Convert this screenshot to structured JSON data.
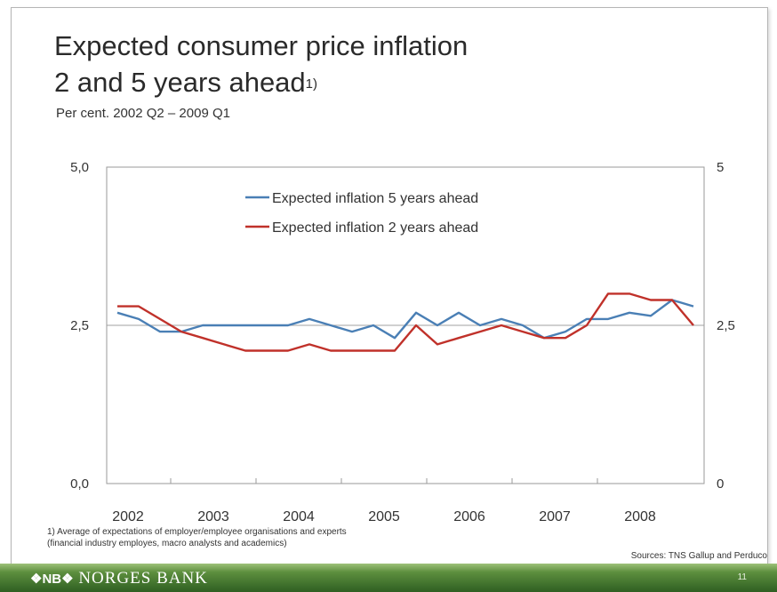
{
  "slide": {
    "title_line1": "Expected consumer price inflation",
    "title_line2": "2 and 5 years ahead",
    "title_sup": "1)",
    "subtitle": "Per cent. 2002 Q2 – 2009 Q1",
    "footnote_line1": "1) Average of expectations of employer/employee organisations and experts",
    "footnote_line2": "(financial industry employes, macro analysts and academics)",
    "sources": "Sources: TNS Gallup and Perduco",
    "logo_mark": "❖NB❖",
    "logo_text": "NORGES BANK",
    "page_number": "11"
  },
  "colors": {
    "series_5y": "#4a7fb5",
    "series_2y": "#c0312a",
    "reference_line": "#b4b4b4"
  },
  "chart_data": {
    "type": "line",
    "title": "Expected consumer price inflation 2 and 5 years ahead",
    "subtitle": "Per cent. 2002 Q2 – 2009 Q1",
    "x_quarters": [
      "2002 Q2",
      "2002 Q3",
      "2002 Q4",
      "2003 Q1",
      "2003 Q2",
      "2003 Q3",
      "2003 Q4",
      "2004 Q1",
      "2004 Q2",
      "2004 Q3",
      "2004 Q4",
      "2005 Q1",
      "2005 Q2",
      "2005 Q3",
      "2005 Q4",
      "2006 Q1",
      "2006 Q2",
      "2006 Q3",
      "2006 Q4",
      "2007 Q1",
      "2007 Q2",
      "2007 Q3",
      "2007 Q4",
      "2008 Q1",
      "2008 Q2",
      "2008 Q3",
      "2008 Q4",
      "2009 Q1"
    ],
    "x_tick_labels": [
      "2002",
      "2003",
      "2004",
      "2005",
      "2006",
      "2007",
      "2008"
    ],
    "y_left_ticks": [
      "0,0",
      "2,5",
      "5,0"
    ],
    "y_right_ticks": [
      "0",
      "2,5",
      "5"
    ],
    "ylim": [
      0,
      5
    ],
    "reference_line": 2.5,
    "legend_position": "top-center",
    "grid": false,
    "series": [
      {
        "name": "Expected inflation 5 years ahead",
        "color": "#4a7fb5",
        "values": [
          2.7,
          2.6,
          2.4,
          2.4,
          2.5,
          2.5,
          2.5,
          2.5,
          2.5,
          2.6,
          2.5,
          2.4,
          2.5,
          2.3,
          2.7,
          2.5,
          2.7,
          2.5,
          2.6,
          2.5,
          2.3,
          2.4,
          2.6,
          2.6,
          2.7,
          2.65,
          2.9,
          2.8
        ]
      },
      {
        "name": "Expected inflation 2 years ahead",
        "color": "#c0312a",
        "values": [
          2.8,
          2.8,
          2.6,
          2.4,
          2.3,
          2.2,
          2.1,
          2.1,
          2.1,
          2.2,
          2.1,
          2.1,
          2.1,
          2.1,
          2.5,
          2.2,
          2.3,
          2.4,
          2.5,
          2.4,
          2.3,
          2.3,
          2.5,
          3.0,
          3.0,
          2.9,
          2.9,
          2.5
        ]
      }
    ]
  }
}
